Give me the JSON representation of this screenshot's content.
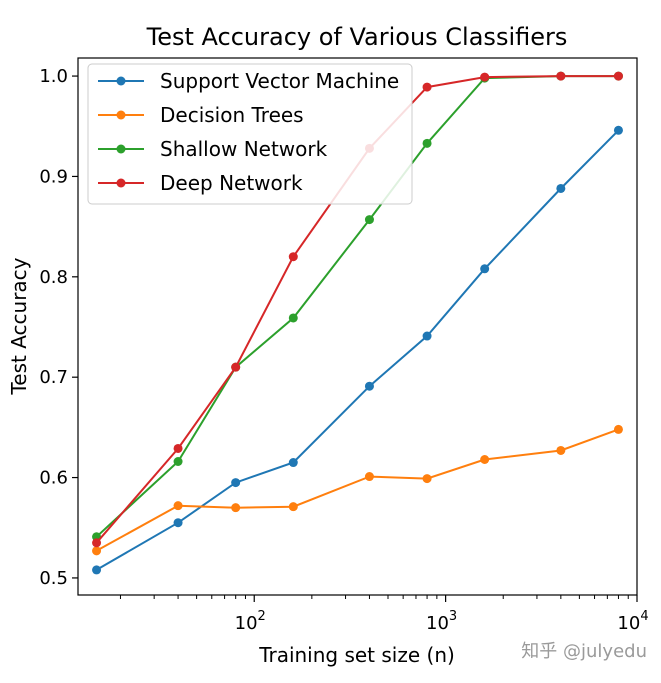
{
  "chart_data": {
    "type": "line",
    "title": "Test Accuracy of Various Classifiers",
    "xlabel": "Training set size (n)",
    "ylabel": "Test Accuracy",
    "xscale": "log",
    "xlim": [
      12,
      10000
    ],
    "ylim": [
      0.483,
      1.018
    ],
    "x": [
      15,
      40,
      80,
      160,
      400,
      800,
      1600,
      4000,
      8000
    ],
    "x_ticks": [
      {
        "value": 100,
        "base": "10",
        "exp": "2"
      },
      {
        "value": 1000,
        "base": "10",
        "exp": "3"
      },
      {
        "value": 10000,
        "base": "10",
        "exp": "4"
      }
    ],
    "y_ticks": [
      "0.5",
      "0.6",
      "0.7",
      "0.8",
      "0.9",
      "1.0"
    ],
    "grid": false,
    "legend_position": "top-left",
    "series": [
      {
        "name": "Support Vector Machine",
        "color": "#1f77b4",
        "values": [
          0.508,
          0.555,
          0.595,
          0.615,
          0.691,
          0.741,
          0.808,
          0.888,
          0.946
        ]
      },
      {
        "name": "Decision Trees",
        "color": "#ff7f0e",
        "values": [
          0.527,
          0.572,
          0.57,
          0.571,
          0.601,
          0.599,
          0.618,
          0.627,
          0.648
        ]
      },
      {
        "name": "Shallow Network",
        "color": "#2ca02c",
        "values": [
          0.541,
          0.616,
          0.71,
          0.759,
          0.857,
          0.933,
          0.998,
          1.0,
          1.0
        ]
      },
      {
        "name": "Deep Network",
        "color": "#d62728",
        "values": [
          0.535,
          0.629,
          0.71,
          0.82,
          0.928,
          0.989,
          0.999,
          1.0,
          1.0
        ]
      }
    ]
  },
  "watermark": "知乎 @julyedu"
}
